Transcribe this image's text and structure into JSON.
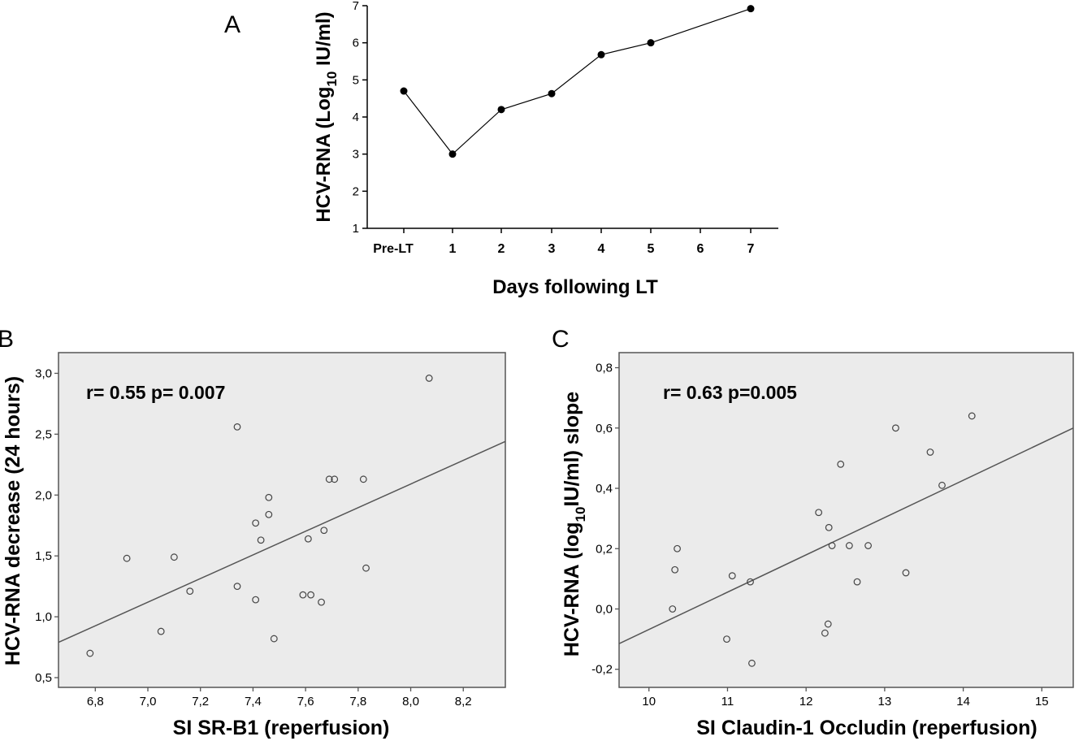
{
  "chart_data": [
    {
      "panel": "A",
      "type": "line",
      "categories": [
        "Pre-LT",
        "1",
        "2",
        "3",
        "4",
        "5",
        "6",
        "7"
      ],
      "x": [
        "Pre-LT",
        "1",
        "2",
        "3",
        "4",
        "5",
        "7"
      ],
      "values": [
        4.7,
        3.0,
        4.2,
        4.63,
        5.68,
        6.0,
        6.92
      ],
      "xlabel": "Days following LT",
      "ylabel_parts": [
        "HCV-RNA (Log",
        "10",
        " IU/ml)"
      ],
      "yticks": [
        1,
        2,
        3,
        4,
        5,
        6,
        7
      ],
      "ylim": [
        1,
        7
      ],
      "grid": false
    },
    {
      "panel": "B",
      "type": "scatter",
      "xlabel": "SI SR-B1 (reperfusion)",
      "ylabel": "HCV-RNA decrease (24 hours)",
      "annotation": "r= 0.55 p= 0.007",
      "xticks": [
        "6,8",
        "7,0",
        "7,2",
        "7,4",
        "7,6",
        "7,8",
        "8,0",
        "8,2"
      ],
      "yticks": [
        "0,5",
        "1,0",
        "1,5",
        "2,0",
        "2,5",
        "3,0"
      ],
      "xlim": [
        6.66,
        8.36
      ],
      "ylim": [
        0.42,
        3.17
      ],
      "points": [
        {
          "x": 6.78,
          "y": 0.7
        },
        {
          "x": 6.92,
          "y": 1.48
        },
        {
          "x": 7.05,
          "y": 0.88
        },
        {
          "x": 7.1,
          "y": 1.49
        },
        {
          "x": 7.16,
          "y": 1.21
        },
        {
          "x": 7.34,
          "y": 2.56
        },
        {
          "x": 7.34,
          "y": 1.25
        },
        {
          "x": 7.41,
          "y": 1.77
        },
        {
          "x": 7.41,
          "y": 1.14
        },
        {
          "x": 7.43,
          "y": 1.63
        },
        {
          "x": 7.46,
          "y": 1.98
        },
        {
          "x": 7.46,
          "y": 1.84
        },
        {
          "x": 7.48,
          "y": 0.82
        },
        {
          "x": 7.59,
          "y": 1.18
        },
        {
          "x": 7.61,
          "y": 1.64
        },
        {
          "x": 7.62,
          "y": 1.18
        },
        {
          "x": 7.66,
          "y": 1.12
        },
        {
          "x": 7.67,
          "y": 1.71
        },
        {
          "x": 7.69,
          "y": 2.13
        },
        {
          "x": 7.71,
          "y": 2.13
        },
        {
          "x": 7.82,
          "y": 2.13
        },
        {
          "x": 7.83,
          "y": 1.4
        },
        {
          "x": 8.07,
          "y": 2.96
        }
      ],
      "fit_line": [
        {
          "x": 6.66,
          "y": 0.79
        },
        {
          "x": 8.36,
          "y": 2.44
        }
      ],
      "grid": false
    },
    {
      "panel": "C",
      "type": "scatter",
      "xlabel": "SI Claudin-1 Occludin (reperfusion)",
      "ylabel_parts": [
        "HCV-RNA (log",
        "10",
        "IU/ml) slope"
      ],
      "annotation": "r= 0.63  p=0.005",
      "xticks": [
        "10",
        "11",
        "12",
        "13",
        "14",
        "15"
      ],
      "yticks": [
        "-0,2",
        "0,0",
        "0,2",
        "0,4",
        "0,6",
        "0,8"
      ],
      "xlim": [
        9.62,
        15.4
      ],
      "ylim": [
        -0.26,
        0.85
      ],
      "points": [
        {
          "x": 10.3,
          "y": 0.0
        },
        {
          "x": 10.33,
          "y": 0.13
        },
        {
          "x": 10.36,
          "y": 0.2
        },
        {
          "x": 10.99,
          "y": -0.1
        },
        {
          "x": 11.06,
          "y": 0.11
        },
        {
          "x": 11.29,
          "y": 0.09
        },
        {
          "x": 11.31,
          "y": -0.18
        },
        {
          "x": 12.16,
          "y": 0.32
        },
        {
          "x": 12.24,
          "y": -0.08
        },
        {
          "x": 12.28,
          "y": -0.05
        },
        {
          "x": 12.29,
          "y": 0.27
        },
        {
          "x": 12.33,
          "y": 0.21
        },
        {
          "x": 12.44,
          "y": 0.48
        },
        {
          "x": 12.55,
          "y": 0.21
        },
        {
          "x": 12.65,
          "y": 0.09
        },
        {
          "x": 12.79,
          "y": 0.21
        },
        {
          "x": 13.14,
          "y": 0.6
        },
        {
          "x": 13.27,
          "y": 0.12
        },
        {
          "x": 13.58,
          "y": 0.52
        },
        {
          "x": 13.73,
          "y": 0.41
        },
        {
          "x": 14.11,
          "y": 0.64
        }
      ],
      "fit_line": [
        {
          "x": 9.62,
          "y": -0.115
        },
        {
          "x": 15.4,
          "y": 0.6
        }
      ],
      "grid": false
    }
  ],
  "colors": {
    "plot_background": "#ebebeb",
    "frame": "#555555",
    "marker_edge": "#444444",
    "line": "#555555",
    "text": "#000000"
  },
  "panel_labels": [
    "A",
    "B",
    "C"
  ]
}
